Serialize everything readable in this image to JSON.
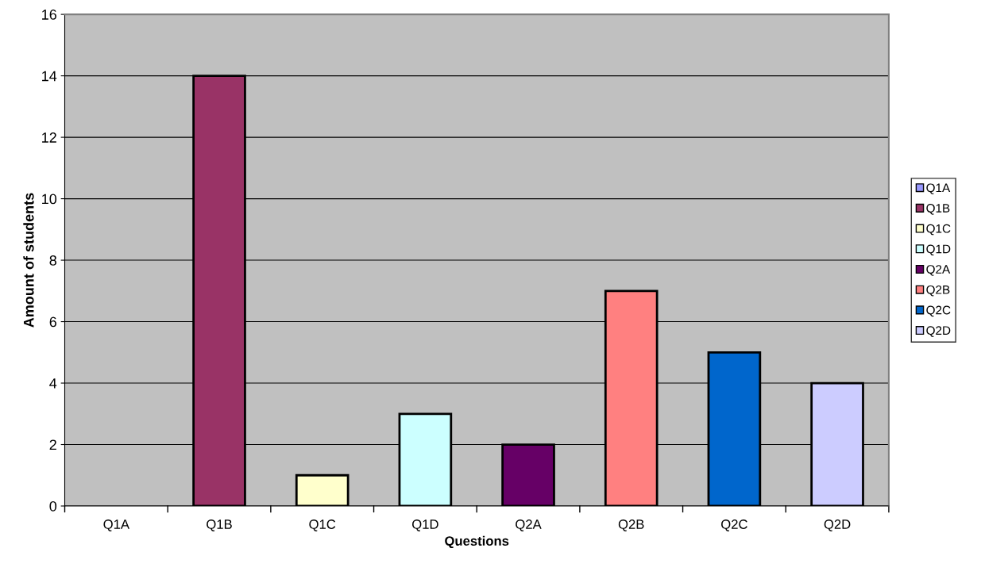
{
  "chart_data": {
    "type": "bar",
    "xlabel": "Questions",
    "ylabel": "Amount of students",
    "categories": [
      "Q1A",
      "Q1B",
      "Q1C",
      "Q1D",
      "Q2A",
      "Q2B",
      "Q2C",
      "Q2D"
    ],
    "series": [
      {
        "name": "Q1A",
        "color": "#9999ff",
        "values": [
          0,
          null,
          null,
          null,
          null,
          null,
          null,
          null
        ]
      },
      {
        "name": "Q1B",
        "color": "#993366",
        "values": [
          null,
          14,
          null,
          null,
          null,
          null,
          null,
          null
        ]
      },
      {
        "name": "Q1C",
        "color": "#ffffcc",
        "values": [
          null,
          null,
          1,
          null,
          null,
          null,
          null,
          null
        ]
      },
      {
        "name": "Q1D",
        "color": "#ccffff",
        "values": [
          null,
          null,
          null,
          3,
          null,
          null,
          null,
          null
        ]
      },
      {
        "name": "Q2A",
        "color": "#660066",
        "values": [
          null,
          null,
          null,
          null,
          2,
          null,
          null,
          null
        ]
      },
      {
        "name": "Q2B",
        "color": "#ff8080",
        "values": [
          null,
          null,
          null,
          null,
          null,
          7,
          null,
          null
        ]
      },
      {
        "name": "Q2C",
        "color": "#0066cc",
        "values": [
          null,
          null,
          null,
          null,
          null,
          null,
          5,
          null
        ]
      },
      {
        "name": "Q2D",
        "color": "#ccccff",
        "values": [
          null,
          null,
          null,
          null,
          null,
          null,
          null,
          4
        ]
      }
    ],
    "ylim": [
      0,
      16
    ],
    "yticks": [
      0,
      2,
      4,
      6,
      8,
      10,
      12,
      14,
      16
    ],
    "grid": "y",
    "legend": "right"
  }
}
